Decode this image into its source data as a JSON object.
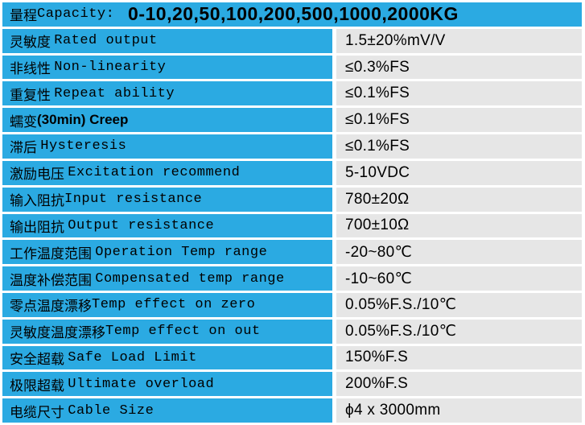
{
  "colors": {
    "header_blue": "#2BAAE2",
    "value_gray": "#E6E6E6",
    "separator_white": "#FFFFFF",
    "text": "#000000"
  },
  "table": {
    "header": {
      "label_cn": "量程",
      "label_en": "Capacity: ",
      "capacity_values": "0-10,20,50,100,200,500,1000,2000KG"
    },
    "rows": [
      {
        "label_cn": "灵敏度 ",
        "label_en": "Rated output",
        "value": "1.5±20%mV/V"
      },
      {
        "label_cn": "非线性 ",
        "label_en": "Non-linearity",
        "value": "≤0.3%FS"
      },
      {
        "label_cn": "重复性 ",
        "label_en": "Repeat ability",
        "value": "≤0.1%FS"
      },
      {
        "label_cn": "蠕变",
        "label_en": "(30min) Creep",
        "value": "≤0.1%FS"
      },
      {
        "label_cn": "滞后 ",
        "label_en": "Hysteresis",
        "value": "≤0.1%FS"
      },
      {
        "label_cn": "激励电压 ",
        "label_en": "Excitation recommend",
        "value": "5-10VDC"
      },
      {
        "label_cn": "输入阻抗",
        "label_en": "Input resistance",
        "value": "780±20Ω"
      },
      {
        "label_cn": "输出阻抗 ",
        "label_en": "Output resistance",
        "value": "700±10Ω"
      },
      {
        "label_cn": "工作温度范围 ",
        "label_en": "Operation Temp range",
        "value": "-20~80℃"
      },
      {
        "label_cn": "温度补偿范围 ",
        "label_en": "Compensated temp range",
        "value": "-10~60℃"
      },
      {
        "label_cn": "零点温度漂移",
        "label_en": "Temp effect on zero",
        "value": "0.05%F.S./10℃"
      },
      {
        "label_cn": "灵敏度温度漂移",
        "label_en": "Temp effect on out",
        "value": "0.05%F.S./10℃"
      },
      {
        "label_cn": "安全超载 ",
        "label_en": "Safe Load Limit",
        "value": "150%F.S"
      },
      {
        "label_cn": "极限超载 ",
        "label_en": "Ultimate overload",
        "value": "200%F.S"
      },
      {
        "label_cn": "电缆尺寸 ",
        "label_en": "Cable Size",
        "value": "ϕ4 x 3000mm"
      }
    ]
  }
}
